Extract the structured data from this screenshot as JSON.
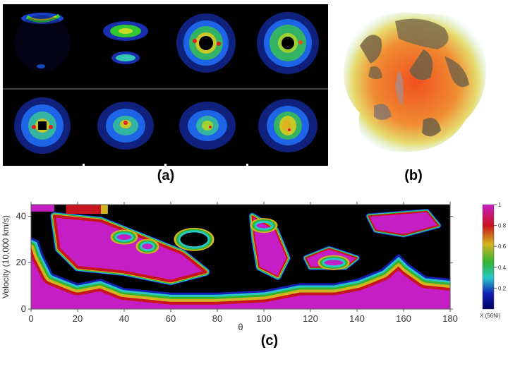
{
  "panels": {
    "a": {
      "label": "(a)"
    },
    "b": {
      "label": "(b)"
    },
    "c": {
      "label": "(c)"
    }
  },
  "colors": {
    "magenta": "#c41ec4",
    "red": "#c8141e",
    "yellow": "#d2b41e",
    "green": "#32b432",
    "cyan": "#28c8c8",
    "blue": "#1420b4",
    "black": "#000000"
  },
  "chart_data": {
    "type": "heatmap",
    "xlabel": "θ",
    "ylabel": "Velocity (10,000 km/s)",
    "xlim": [
      0,
      180
    ],
    "ylim": [
      0,
      45
    ],
    "x_ticks": [
      "0",
      "20",
      "40",
      "60",
      "80",
      "100",
      "120",
      "140",
      "160",
      "180"
    ],
    "y_ticks": [
      "0",
      "20",
      "40"
    ],
    "colorbar": {
      "label": "X (56Ni)",
      "ticks": [
        "1",
        "0.8",
        "0.6",
        "0.4",
        "0.2"
      ],
      "range": [
        0,
        1
      ]
    }
  }
}
